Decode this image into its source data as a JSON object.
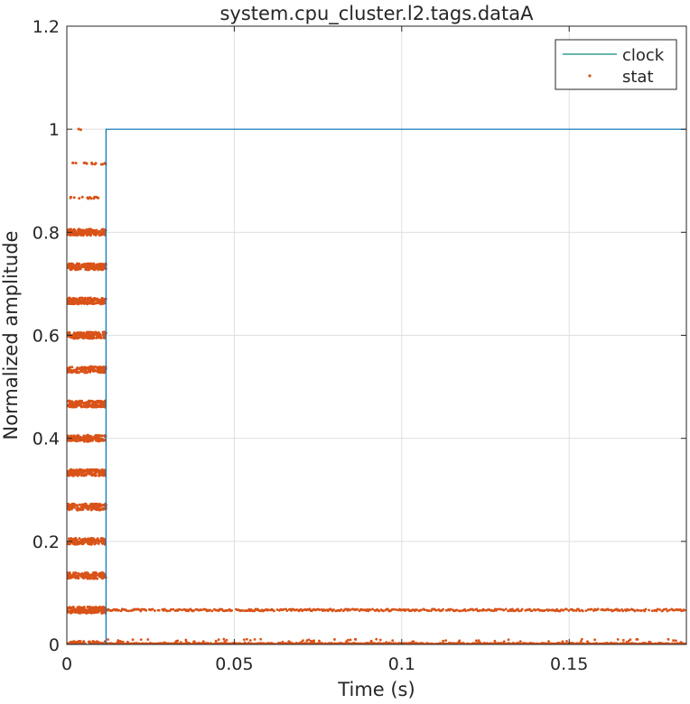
{
  "chart_data": {
    "type": "line",
    "title": "system.cpu_cluster.l2.tags.dataA",
    "xlabel": "Time (s)",
    "ylabel": "Normalized amplitude",
    "xlim": [
      0,
      0.185
    ],
    "ylim": [
      0,
      1.2
    ],
    "xticks": [
      0,
      0.05,
      0.1,
      0.15
    ],
    "xtick_labels": [
      "0",
      "0.05",
      "0.1",
      "0.15"
    ],
    "yticks": [
      0,
      0.2,
      0.4,
      0.6,
      0.8,
      1.0,
      1.2
    ],
    "ytick_labels": [
      "0",
      "0.2",
      "0.4",
      "0.6",
      "0.8",
      "1",
      "1.2"
    ],
    "grid": true,
    "legend_position": "top-right",
    "colors": {
      "clock": "#0072bd",
      "stat": "#d95319",
      "legend_clock_line": "#0e8a7e"
    },
    "series": [
      {
        "name": "clock",
        "kind": "step-line",
        "points": [
          [
            0,
            0
          ],
          [
            0.0117,
            0
          ],
          [
            0.0117,
            1
          ],
          [
            0.185,
            1
          ]
        ]
      },
      {
        "name": "stat",
        "kind": "scatter",
        "dense_band": {
          "x_range": [
            0,
            0.0117
          ],
          "levels": [
            0,
            0.0667,
            0.1333,
            0.2,
            0.2667,
            0.3333,
            0.4,
            0.4667,
            0.5333,
            0.6,
            0.6667,
            0.7333,
            0.8
          ]
        },
        "sparse_levels": [
          {
            "y": 0.8667,
            "x_range": [
              0.001,
              0.0095
            ]
          },
          {
            "y": 0.9333,
            "x_range": [
              0.0015,
              0.0117
            ]
          },
          {
            "y": 1.0,
            "x_range": [
              0.0035,
              0.0045
            ]
          }
        ],
        "tail_levels": [
          {
            "y": 0.0667,
            "x_range": [
              0.0117,
              0.185
            ],
            "note": "dense dashed band"
          },
          {
            "y": 0.0,
            "x_range": [
              0.0117,
              0.185
            ],
            "note": "dense band with scattered points near zero"
          }
        ]
      }
    ]
  }
}
